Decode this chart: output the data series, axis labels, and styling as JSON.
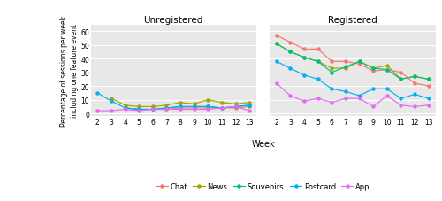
{
  "weeks": [
    2,
    3,
    4,
    5,
    6,
    7,
    8,
    9,
    10,
    11,
    12,
    13
  ],
  "unregistered": {
    "Chat": [
      null,
      null,
      4,
      3,
      3,
      3,
      4,
      4,
      4,
      4,
      4,
      5
    ],
    "News": [
      null,
      11,
      6,
      5,
      5,
      6,
      8,
      7,
      10,
      8,
      7,
      8
    ],
    "Souvenirs": [
      null,
      null,
      4,
      3,
      3,
      4,
      5,
      5,
      5,
      4,
      5,
      6
    ],
    "Postcard": [
      15,
      9,
      4,
      3,
      3,
      4,
      5,
      5,
      5,
      4,
      5,
      6
    ],
    "App": [
      2,
      2,
      3,
      2,
      3,
      3,
      3,
      3,
      3,
      4,
      5,
      2
    ]
  },
  "registered": {
    "Chat": [
      57,
      52,
      47,
      47,
      38,
      38,
      36,
      31,
      32,
      30,
      22,
      20
    ],
    "News": [
      51,
      45,
      41,
      38,
      33,
      33,
      38,
      33,
      35,
      25,
      27,
      25
    ],
    "Souvenirs": [
      51,
      45,
      41,
      38,
      30,
      34,
      38,
      33,
      32,
      25,
      27,
      25
    ],
    "Postcard": [
      38,
      33,
      28,
      25,
      18,
      16,
      13,
      18,
      18,
      11,
      14,
      11
    ],
    "App": [
      22,
      13,
      9,
      11,
      8,
      11,
      11,
      5,
      13,
      6,
      5,
      6
    ]
  },
  "colors": {
    "Chat": "#f8766d",
    "News": "#a3a500",
    "Souvenirs": "#00bf7d",
    "Postcard": "#00b0f6",
    "App": "#e76bf3"
  },
  "ylim": [
    -2,
    65
  ],
  "yticks": [
    0,
    10,
    20,
    30,
    40,
    50,
    60
  ],
  "bg_color": "#e8e8e8",
  "ylabel": "Percentage of sessions per week\nincluding one feature event",
  "xlabel": "Week",
  "title_unreg": "Unregistered",
  "title_reg": "Registered",
  "legend_order": [
    "Chat",
    "News",
    "Souvenirs",
    "Postcard",
    "App"
  ]
}
